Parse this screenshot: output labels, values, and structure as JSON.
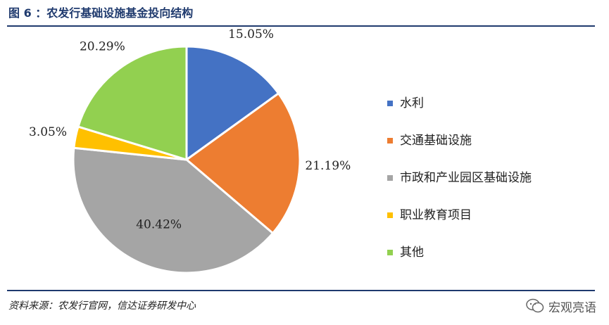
{
  "header": {
    "title": "图 6 ：农发行基础设施基金投向结构"
  },
  "chart_data": {
    "type": "pie",
    "slices": [
      {
        "label": "水利",
        "value": 15.05,
        "value_label": "15.05%",
        "color": "#4472c4"
      },
      {
        "label": "交通基础设施",
        "value": 21.19,
        "value_label": "21.19%",
        "color": "#ed7d31"
      },
      {
        "label": "市政和产业园区基础设施",
        "value": 40.42,
        "value_label": "40.42%",
        "color": "#a5a5a5"
      },
      {
        "label": "职业教育项目",
        "value": 3.05,
        "value_label": "3.05%",
        "color": "#ffc000"
      },
      {
        "label": "其他",
        "value": 20.29,
        "value_label": "20.29%",
        "color": "#92d050"
      }
    ],
    "legend_position": "right"
  },
  "footer": {
    "source": "资料来源：农发行官网，信达证券研发中心",
    "watermark": "宏观亮语"
  },
  "colors": {
    "accent": "#1f3a6e"
  }
}
